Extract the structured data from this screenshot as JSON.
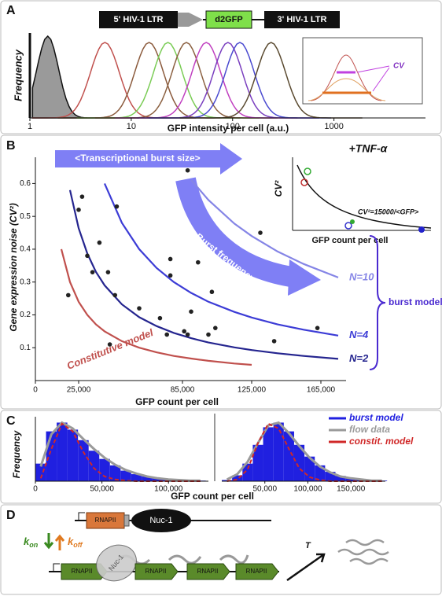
{
  "panel_labels": [
    "A",
    "B",
    "C",
    "D"
  ],
  "construct": [
    "5' HIV-1 LTR",
    "d2GFP",
    "3' HIV-1 LTR"
  ],
  "chart_data": [
    {
      "type": "density",
      "xlabel": "GFP intensity per cell (a.u.)",
      "ylabel": "Frequency",
      "log_x": true,
      "xlim": [
        1,
        8000
      ],
      "xticks": [
        1,
        10,
        100,
        1000
      ],
      "inset_label": "CV",
      "series": [
        {
          "color": "#9a9a9a",
          "peak": 1.5,
          "filled": true
        },
        {
          "color": "#c0504d",
          "peak": 5.5
        },
        {
          "color": "#8b5a3c",
          "peak": 15
        },
        {
          "color": "#7acc55",
          "peak": 23
        },
        {
          "color": "#8b6040",
          "peak": 35
        },
        {
          "color": "#c040c0",
          "peak": 55
        },
        {
          "color": "#7a3fbf",
          "peak": 90
        },
        {
          "color": "#4a4ad0",
          "peak": 118
        },
        {
          "color": "#5a4a30",
          "peak": 240
        }
      ]
    },
    {
      "type": "scatter",
      "xlabel": "GFP count per cell",
      "ylabel": "Gene expression noise (CV²)",
      "xlim": [
        0,
        175000
      ],
      "ylim": [
        0,
        0.68
      ],
      "xticks": [
        0,
        {
          "value": 25000,
          "label": "25,000"
        },
        {
          "value": 85000,
          "label": "85,000"
        },
        {
          "value": 125000,
          "label": "125,000"
        },
        {
          "value": 165000,
          "label": "165,000"
        }
      ],
      "yticks": [
        0.1,
        0.2,
        0.3,
        0.4,
        0.5,
        0.6
      ],
      "color": "#222222",
      "x": [
        27000,
        25000,
        30000,
        33000,
        37000,
        42000,
        46000,
        47000,
        19000,
        43000,
        60000,
        72000,
        76000,
        78000,
        78000,
        86000,
        88000,
        90000,
        94000,
        100000,
        102000,
        104000,
        88000,
        130000,
        138000,
        163000
      ],
      "values": [
        0.56,
        0.52,
        0.38,
        0.33,
        0.42,
        0.33,
        0.26,
        0.53,
        0.26,
        0.11,
        0.22,
        0.19,
        0.14,
        0.32,
        0.37,
        0.15,
        0.14,
        0.21,
        0.36,
        0.14,
        0.27,
        0.16,
        0.64,
        0.45,
        0.12,
        0.16
      ],
      "curves": {
        "x": [
          15000,
          20000,
          25000,
          30000,
          35000,
          40000,
          50000,
          60000,
          70000,
          80000,
          90000,
          100000,
          115000,
          125000,
          140000,
          155000,
          175000
        ],
        "series": [
          {
            "name": "Constitutive model",
            "color": "#c0504d",
            "values": [
              0.4,
              0.3,
              0.24,
              0.2,
              0.171,
              0.15,
              0.12,
              0.1,
              0.086,
              0.075,
              0.067,
              0.06,
              0.052,
              0.048,
              null,
              null,
              null
            ]
          },
          {
            "name": "N=2",
            "color": "#25258f",
            "values": [
              null,
              0.58,
              0.464,
              0.387,
              0.331,
              0.29,
              0.232,
              0.193,
              0.166,
              0.145,
              0.129,
              0.116,
              0.101,
              0.093,
              0.083,
              0.075,
              0.066
            ]
          },
          {
            "name": "N=4",
            "color": "#3c3cd6",
            "values": [
              null,
              null,
              null,
              null,
              null,
              0.6,
              0.48,
              0.4,
              0.343,
              0.3,
              0.267,
              0.24,
              0.209,
              0.192,
              0.171,
              0.155,
              0.137
            ]
          },
          {
            "name": "N=10",
            "color": "#8585e6",
            "values": [
              null,
              null,
              null,
              null,
              null,
              null,
              null,
              null,
              null,
              null,
              0.611,
              0.55,
              0.478,
              0.44,
              0.393,
              0.355,
              0.314
            ]
          }
        ]
      },
      "bracket_label": "burst models",
      "arrow_size": "<Transcriptional burst size>",
      "arrow_frequency": "Burst frequency",
      "inset": {
        "title": "+TNF-α",
        "ylabel": "CV²",
        "xlabel": "GFP count per cell",
        "equation": "CV²=15000/<GFP>"
      }
    },
    {
      "type": "histogram",
      "ylim": [
        0,
        110
      ],
      "xlim": [
        0,
        130000
      ],
      "xticks": [
        0,
        {
          "value": 50000,
          "label": "50,000"
        },
        {
          "value": 100000,
          "label": "100,000"
        }
      ],
      "bins": [
        0,
        8000,
        16000,
        24000,
        32000,
        40000,
        48000,
        56000,
        64000,
        72000,
        80000,
        88000,
        96000,
        104000,
        112000,
        120000,
        128000
      ],
      "series": [
        {
          "color": "#2020e0",
          "mark": "bar",
          "values": [
            30,
            85,
            100,
            88,
            70,
            52,
            38,
            27,
            18,
            12,
            8,
            5,
            3,
            2,
            1,
            1
          ]
        },
        {
          "color": "#9a9a9a",
          "mark": "line",
          "values": [
            25,
            80,
            100,
            90,
            72,
            55,
            40,
            28,
            19,
            13,
            8,
            5,
            3,
            2,
            1,
            1
          ]
        },
        {
          "color": "#d02828",
          "mark": "dashed",
          "values": [
            5,
            55,
            98,
            85,
            50,
            22,
            8,
            3,
            1,
            0,
            0,
            0,
            0,
            0,
            0,
            0
          ]
        }
      ]
    },
    {
      "type": "histogram",
      "ylim": [
        0,
        110
      ],
      "xlim": [
        0,
        190000
      ],
      "xticks": [
        {
          "value": 50000,
          "label": "50,000"
        },
        {
          "value": 100000,
          "label": "100,000"
        },
        {
          "value": 150000,
          "label": "150,000"
        }
      ],
      "bins": [
        0,
        12000,
        24000,
        36000,
        48000,
        60000,
        72000,
        84000,
        96000,
        108000,
        120000,
        132000,
        144000,
        156000,
        168000,
        180000,
        192000
      ],
      "series": [
        {
          "name": "burst model",
          "color": "#2020e0",
          "mark": "bar",
          "values": [
            2,
            10,
            30,
            62,
            92,
            100,
            85,
            62,
            42,
            27,
            16,
            9,
            5,
            3,
            1,
            1
          ]
        },
        {
          "name": "flow data",
          "color": "#9a9a9a",
          "mark": "line",
          "values": [
            3,
            12,
            33,
            65,
            95,
            100,
            82,
            60,
            40,
            25,
            15,
            8,
            5,
            3,
            1,
            1
          ]
        },
        {
          "name": "constit. model",
          "color": "#d02828",
          "mark": "dashed",
          "values": [
            0,
            3,
            20,
            65,
            98,
            90,
            55,
            22,
            7,
            2,
            0,
            0,
            0,
            0,
            0,
            0
          ]
        }
      ]
    }
  ],
  "panel_c": {
    "ylabel": "Frequency",
    "xlabel": "GFP count per cell"
  },
  "panel_d": {
    "rnap": [
      "RNAPII",
      "RNAPII",
      "RNAPII",
      "RNAPII",
      "RNAPII"
    ],
    "nuc": [
      "Nuc-1",
      "Nuc-1"
    ],
    "k": [
      "k",
      "k"
    ],
    "k_sub": [
      "on",
      "off"
    ],
    "rate": "T"
  }
}
